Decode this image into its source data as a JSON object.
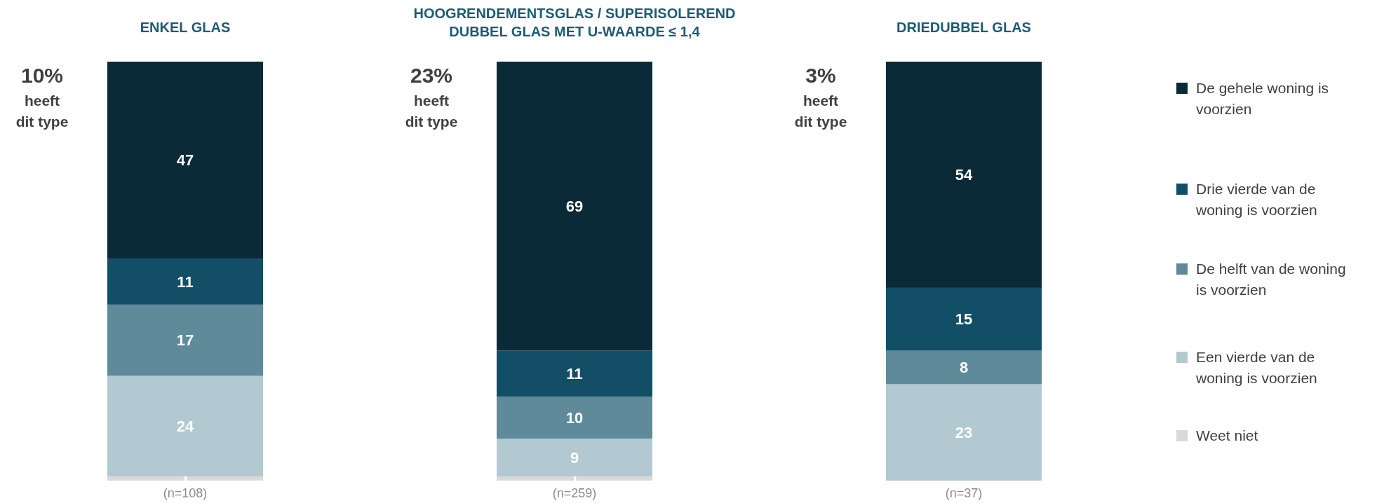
{
  "chart_data": [
    {
      "type": "bar",
      "title": "ENKEL GLAS",
      "categories": [
        null
      ],
      "stacked": true,
      "ylim": [
        0,
        100
      ],
      "tick_labels": false,
      "data_labels": true,
      "legend": "right",
      "annotations": [
        "10%",
        "heeft dit type",
        "(n=108)"
      ],
      "series": [
        {
          "name": "Weet niet",
          "color": "#d9d9d9",
          "values": [
            1
          ]
        },
        {
          "name": "Een vierde van de woning is voorzien",
          "color": "#b3c9d2",
          "values": [
            24
          ]
        },
        {
          "name": "De helft van de woning is voorzien",
          "color": "#5e8a9a",
          "values": [
            17
          ]
        },
        {
          "name": "Drie vierde van de woning is voorzien",
          "color": "#124f66",
          "values": [
            11
          ]
        },
        {
          "name": "De gehele woning is voorzien",
          "color": "#0b2a38",
          "values": [
            47
          ]
        }
      ]
    },
    {
      "type": "bar",
      "title": "HOOGRENDEMENTSGLAS / SUPERISOLEREND DUBBEL GLAS MET U-WAARDE ≤ 1,4",
      "categories": [
        null
      ],
      "stacked": true,
      "ylim": [
        0,
        100
      ],
      "tick_labels": false,
      "data_labels": true,
      "annotations": [
        "23%",
        "heeft dit type",
        "(n=259)"
      ],
      "series": [
        {
          "color": "#d9d9d9",
          "values": [
            1
          ]
        },
        {
          "color": "#b3c9d2",
          "values": [
            9
          ]
        },
        {
          "color": "#5e8a9a",
          "values": [
            10
          ]
        },
        {
          "color": "#124f66",
          "values": [
            11
          ]
        },
        {
          "color": "#0b2a38",
          "values": [
            69
          ]
        }
      ]
    },
    {
      "type": "bar",
      "title": "DRIEDUBBEL GLAS",
      "categories": [
        null
      ],
      "stacked": true,
      "ylim": [
        0,
        100
      ],
      "tick_labels": false,
      "data_labels": true,
      "annotations": [
        "3%",
        "heeft dit type",
        "(n=37)"
      ],
      "series": [
        {
          "color": "#b3c9d2",
          "values": [
            23
          ]
        },
        {
          "color": "#5e8a9a",
          "values": [
            8
          ]
        },
        {
          "color": "#124f66",
          "values": [
            15
          ]
        },
        {
          "color": "#0b2a38",
          "values": [
            54
          ]
        }
      ]
    }
  ]
}
